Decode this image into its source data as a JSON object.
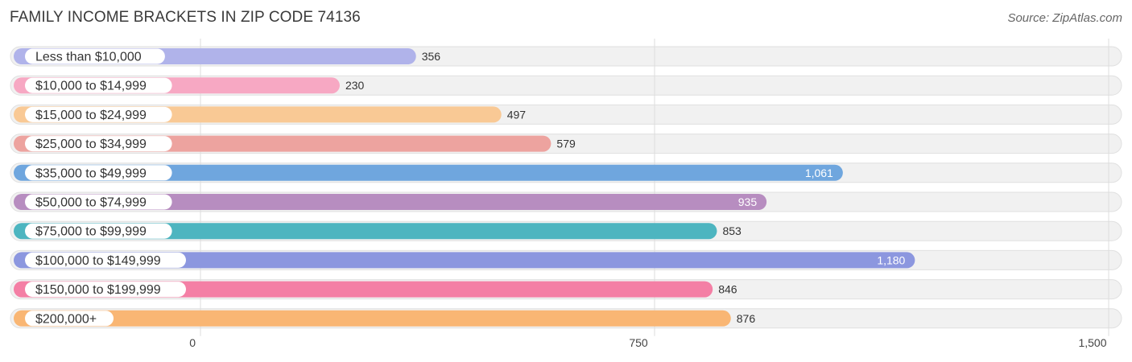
{
  "header": {
    "title": "FAMILY INCOME BRACKETS IN ZIP CODE 74136",
    "source": "Source: ZipAtlas.com"
  },
  "chart_data": {
    "type": "bar",
    "orientation": "horizontal",
    "title": "FAMILY INCOME BRACKETS IN ZIP CODE 74136",
    "categories": [
      "Less than $10,000",
      "$10,000 to $14,999",
      "$15,000 to $24,999",
      "$25,000 to $34,999",
      "$35,000 to $49,999",
      "$50,000 to $74,999",
      "$75,000 to $99,999",
      "$100,000 to $149,999",
      "$150,000 to $199,999",
      "$200,000+"
    ],
    "values": [
      356,
      230,
      497,
      579,
      1061,
      935,
      853,
      1180,
      846,
      876
    ],
    "value_labels": [
      "356",
      "230",
      "497",
      "579",
      "1,061",
      "935",
      "853",
      "1,180",
      "846",
      "876"
    ],
    "bar_colors": [
      "#b0b3ea",
      "#f7a8c3",
      "#f9c995",
      "#eda39f",
      "#6fa6de",
      "#b78dc0",
      "#4db5c0",
      "#8c97df",
      "#f47fa5",
      "#f9b674"
    ],
    "xlim": [
      0,
      1500
    ],
    "xticks": [
      0,
      750,
      1500
    ],
    "xtick_labels": [
      "0",
      "750",
      "1,500"
    ],
    "grid": true
  }
}
